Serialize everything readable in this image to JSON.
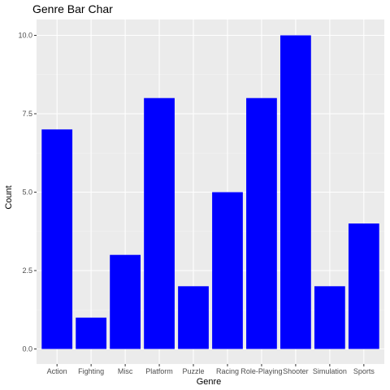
{
  "chart_data": {
    "type": "bar",
    "title": "Genre Bar Char",
    "xlabel": "Genre",
    "ylabel": "Count",
    "categories": [
      "Action",
      "Fighting",
      "Misc",
      "Platform",
      "Puzzle",
      "Racing",
      "Role-Playing",
      "Shooter",
      "Simulation",
      "Sports"
    ],
    "values": [
      7,
      1,
      3,
      8,
      2,
      5,
      8,
      10,
      2,
      4
    ],
    "ylim": [
      0,
      10.5
    ],
    "yticks": [
      0,
      2.5,
      5,
      7.5,
      10
    ],
    "ytick_labels": [
      "0.0",
      "2.5",
      "5.0",
      "7.5",
      "10.0"
    ],
    "bar_color": "#0000ff",
    "panel_color": "#ebebeb",
    "grid": true
  }
}
